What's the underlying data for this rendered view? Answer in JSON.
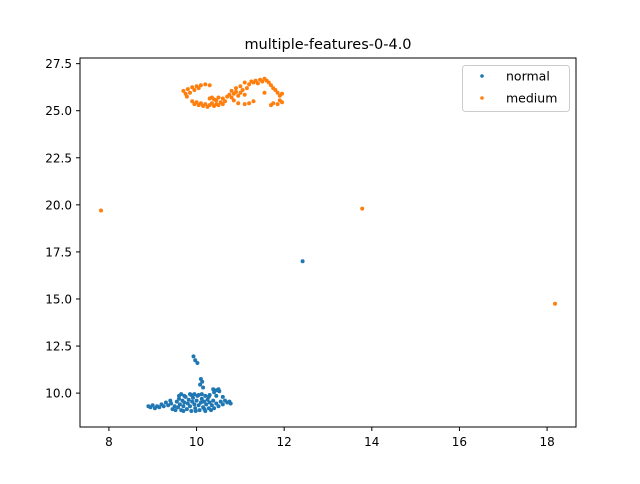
{
  "chart_data": {
    "type": "scatter",
    "title": "multiple-features-0-4.0",
    "xlabel": "",
    "ylabel": "",
    "xlim": [
      7.34,
      18.66
    ],
    "ylim": [
      8.2,
      27.8
    ],
    "xticks": [
      "8",
      "10",
      "12",
      "14",
      "16",
      "18"
    ],
    "xtick_values": [
      8,
      10,
      12,
      14,
      16,
      18
    ],
    "yticks": [
      "10.0",
      "12.5",
      "15.0",
      "17.5",
      "20.0",
      "22.5",
      "25.0",
      "27.5"
    ],
    "ytick_values": [
      10.0,
      12.5,
      15.0,
      17.5,
      20.0,
      22.5,
      25.0,
      27.5
    ],
    "legend_placement": "top-right",
    "grid": false,
    "series": [
      {
        "name": "normal",
        "color": "#1f77b4",
        "points": [
          [
            12.42,
            17.0
          ],
          [
            9.93,
            11.95
          ],
          [
            9.97,
            11.75
          ],
          [
            10.02,
            11.6
          ],
          [
            10.1,
            10.75
          ],
          [
            10.13,
            10.6
          ],
          [
            10.08,
            10.45
          ],
          [
            10.15,
            10.3
          ],
          [
            10.38,
            10.2
          ],
          [
            10.45,
            10.15
          ],
          [
            10.52,
            10.1
          ],
          [
            10.4,
            10.05
          ],
          [
            9.65,
            9.95
          ],
          [
            9.72,
            9.85
          ],
          [
            9.88,
            9.9
          ],
          [
            9.95,
            9.95
          ],
          [
            10.05,
            9.9
          ],
          [
            10.12,
            9.95
          ],
          [
            10.2,
            9.85
          ],
          [
            10.3,
            9.9
          ],
          [
            10.45,
            9.85
          ],
          [
            10.6,
            9.8
          ],
          [
            8.9,
            9.3
          ],
          [
            8.95,
            9.25
          ],
          [
            9.0,
            9.35
          ],
          [
            9.05,
            9.2
          ],
          [
            9.1,
            9.3
          ],
          [
            9.15,
            9.25
          ],
          [
            9.2,
            9.4
          ],
          [
            9.25,
            9.3
          ],
          [
            9.3,
            9.5
          ],
          [
            9.35,
            9.35
          ],
          [
            9.4,
            9.6
          ],
          [
            9.42,
            9.45
          ],
          [
            9.45,
            9.15
          ],
          [
            9.5,
            9.3
          ],
          [
            9.52,
            9.1
          ],
          [
            9.55,
            9.55
          ],
          [
            9.58,
            9.25
          ],
          [
            9.6,
            9.7
          ],
          [
            9.62,
            9.4
          ],
          [
            9.65,
            9.1
          ],
          [
            9.68,
            9.6
          ],
          [
            9.7,
            9.3
          ],
          [
            9.72,
            9.5
          ],
          [
            9.75,
            9.8
          ],
          [
            9.78,
            9.15
          ],
          [
            9.8,
            9.45
          ],
          [
            9.82,
            9.65
          ],
          [
            9.85,
            9.3
          ],
          [
            9.88,
            9.05
          ],
          [
            9.9,
            9.55
          ],
          [
            9.92,
            9.75
          ],
          [
            9.95,
            9.4
          ],
          [
            9.97,
            9.2
          ],
          [
            10.0,
            9.6
          ],
          [
            10.02,
            9.85
          ],
          [
            10.05,
            9.35
          ],
          [
            10.07,
            9.1
          ],
          [
            10.1,
            9.5
          ],
          [
            10.12,
            9.7
          ],
          [
            10.15,
            9.25
          ],
          [
            10.17,
            9.55
          ],
          [
            10.2,
            9.05
          ],
          [
            10.22,
            9.4
          ],
          [
            10.25,
            9.65
          ],
          [
            10.28,
            9.2
          ],
          [
            10.3,
            9.5
          ],
          [
            10.33,
            9.1
          ],
          [
            10.35,
            9.35
          ],
          [
            10.38,
            9.6
          ],
          [
            10.4,
            9.2
          ],
          [
            10.45,
            9.45
          ],
          [
            10.5,
            9.3
          ],
          [
            10.55,
            9.55
          ],
          [
            10.6,
            9.4
          ],
          [
            10.65,
            9.6
          ],
          [
            10.7,
            9.5
          ],
          [
            10.75,
            9.55
          ],
          [
            10.78,
            9.45
          ],
          [
            9.7,
            9.05
          ],
          [
            9.98,
            9.05
          ],
          [
            10.18,
            9.15
          ],
          [
            9.6,
            9.85
          ],
          [
            9.85,
            9.95
          ],
          [
            10.28,
            9.8
          ],
          [
            10.5,
            10.2
          ]
        ]
      },
      {
        "name": "medium",
        "color": "#ff7f0e",
        "points": [
          [
            7.82,
            19.7
          ],
          [
            13.78,
            19.8
          ],
          [
            18.18,
            14.75
          ],
          [
            9.7,
            26.05
          ],
          [
            9.75,
            25.9
          ],
          [
            9.8,
            26.15
          ],
          [
            9.85,
            25.95
          ],
          [
            9.78,
            25.75
          ],
          [
            9.9,
            26.25
          ],
          [
            9.95,
            26.1
          ],
          [
            10.0,
            26.3
          ],
          [
            10.05,
            26.2
          ],
          [
            10.1,
            26.35
          ],
          [
            10.2,
            26.4
          ],
          [
            10.3,
            26.35
          ],
          [
            9.9,
            25.5
          ],
          [
            9.95,
            25.35
          ],
          [
            10.0,
            25.45
          ],
          [
            10.05,
            25.3
          ],
          [
            10.1,
            25.4
          ],
          [
            10.15,
            25.25
          ],
          [
            10.2,
            25.35
          ],
          [
            10.25,
            25.2
          ],
          [
            10.3,
            25.3
          ],
          [
            10.35,
            25.4
          ],
          [
            10.4,
            25.25
          ],
          [
            10.45,
            25.35
          ],
          [
            10.5,
            25.3
          ],
          [
            10.55,
            25.45
          ],
          [
            10.6,
            25.35
          ],
          [
            10.3,
            25.65
          ],
          [
            10.35,
            25.7
          ],
          [
            10.4,
            25.6
          ],
          [
            10.5,
            25.7
          ],
          [
            10.6,
            25.65
          ],
          [
            10.7,
            25.75
          ],
          [
            10.75,
            25.85
          ],
          [
            10.8,
            25.7
          ],
          [
            10.85,
            25.9
          ],
          [
            10.9,
            26.0
          ],
          [
            10.95,
            25.8
          ],
          [
            11.0,
            25.95
          ],
          [
            11.05,
            26.1
          ],
          [
            11.1,
            25.85
          ],
          [
            11.15,
            26.2
          ],
          [
            11.2,
            26.4
          ],
          [
            11.25,
            26.55
          ],
          [
            11.3,
            26.5
          ],
          [
            11.35,
            26.6
          ],
          [
            11.4,
            26.45
          ],
          [
            11.45,
            26.65
          ],
          [
            11.5,
            26.55
          ],
          [
            11.55,
            26.7
          ],
          [
            11.6,
            26.6
          ],
          [
            11.65,
            26.5
          ],
          [
            11.7,
            26.35
          ],
          [
            11.75,
            26.2
          ],
          [
            11.8,
            26.1
          ],
          [
            11.85,
            25.95
          ],
          [
            11.9,
            25.8
          ],
          [
            11.95,
            25.9
          ],
          [
            11.9,
            25.55
          ],
          [
            11.95,
            25.45
          ],
          [
            11.85,
            25.35
          ],
          [
            11.75,
            25.4
          ],
          [
            11.7,
            25.3
          ],
          [
            11.3,
            25.5
          ],
          [
            11.2,
            25.4
          ],
          [
            11.1,
            25.35
          ],
          [
            10.95,
            25.4
          ],
          [
            10.85,
            25.55
          ],
          [
            10.65,
            25.5
          ],
          [
            10.45,
            25.55
          ],
          [
            11.0,
            26.3
          ],
          [
            11.1,
            26.5
          ],
          [
            10.9,
            26.2
          ],
          [
            10.8,
            26.05
          ],
          [
            11.55,
            25.95
          ]
        ]
      }
    ]
  }
}
